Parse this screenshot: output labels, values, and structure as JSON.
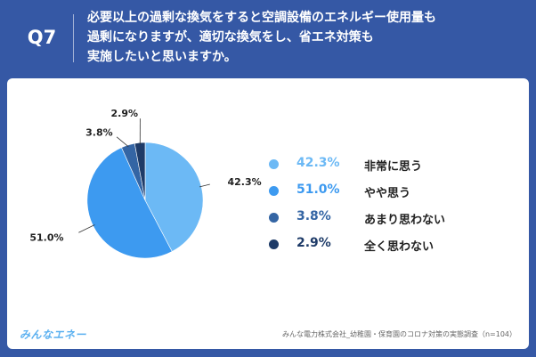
{
  "header": {
    "qnum": "Q7",
    "question_lines": [
      "必要以上の過剰な換気をすると空調設備のエネルギー使用量も",
      "過剰になりますが、適切な換気をし、省エネ対策も",
      "実施したいと思いますか。"
    ]
  },
  "chart_data": {
    "type": "pie",
    "start": "top, clockwise",
    "slices": [
      {
        "label": "非常に思う",
        "value": 42.3,
        "value_text": "42.3%",
        "color": "#6cb9f5"
      },
      {
        "label": "やや思う",
        "value": 51.0,
        "value_text": "51.0%",
        "color": "#3d9af0"
      },
      {
        "label": "あまり思わない",
        "value": 3.8,
        "value_text": "3.8%",
        "color": "#3465a4"
      },
      {
        "label": "全く思わない",
        "value": 2.9,
        "value_text": "2.9%",
        "color": "#1e3b68"
      }
    ]
  },
  "footer": {
    "logo": "みんなエネー",
    "source": "みんな電力株式会社_幼稚園・保育園のコロナ対策の実態調査（n=104）"
  }
}
